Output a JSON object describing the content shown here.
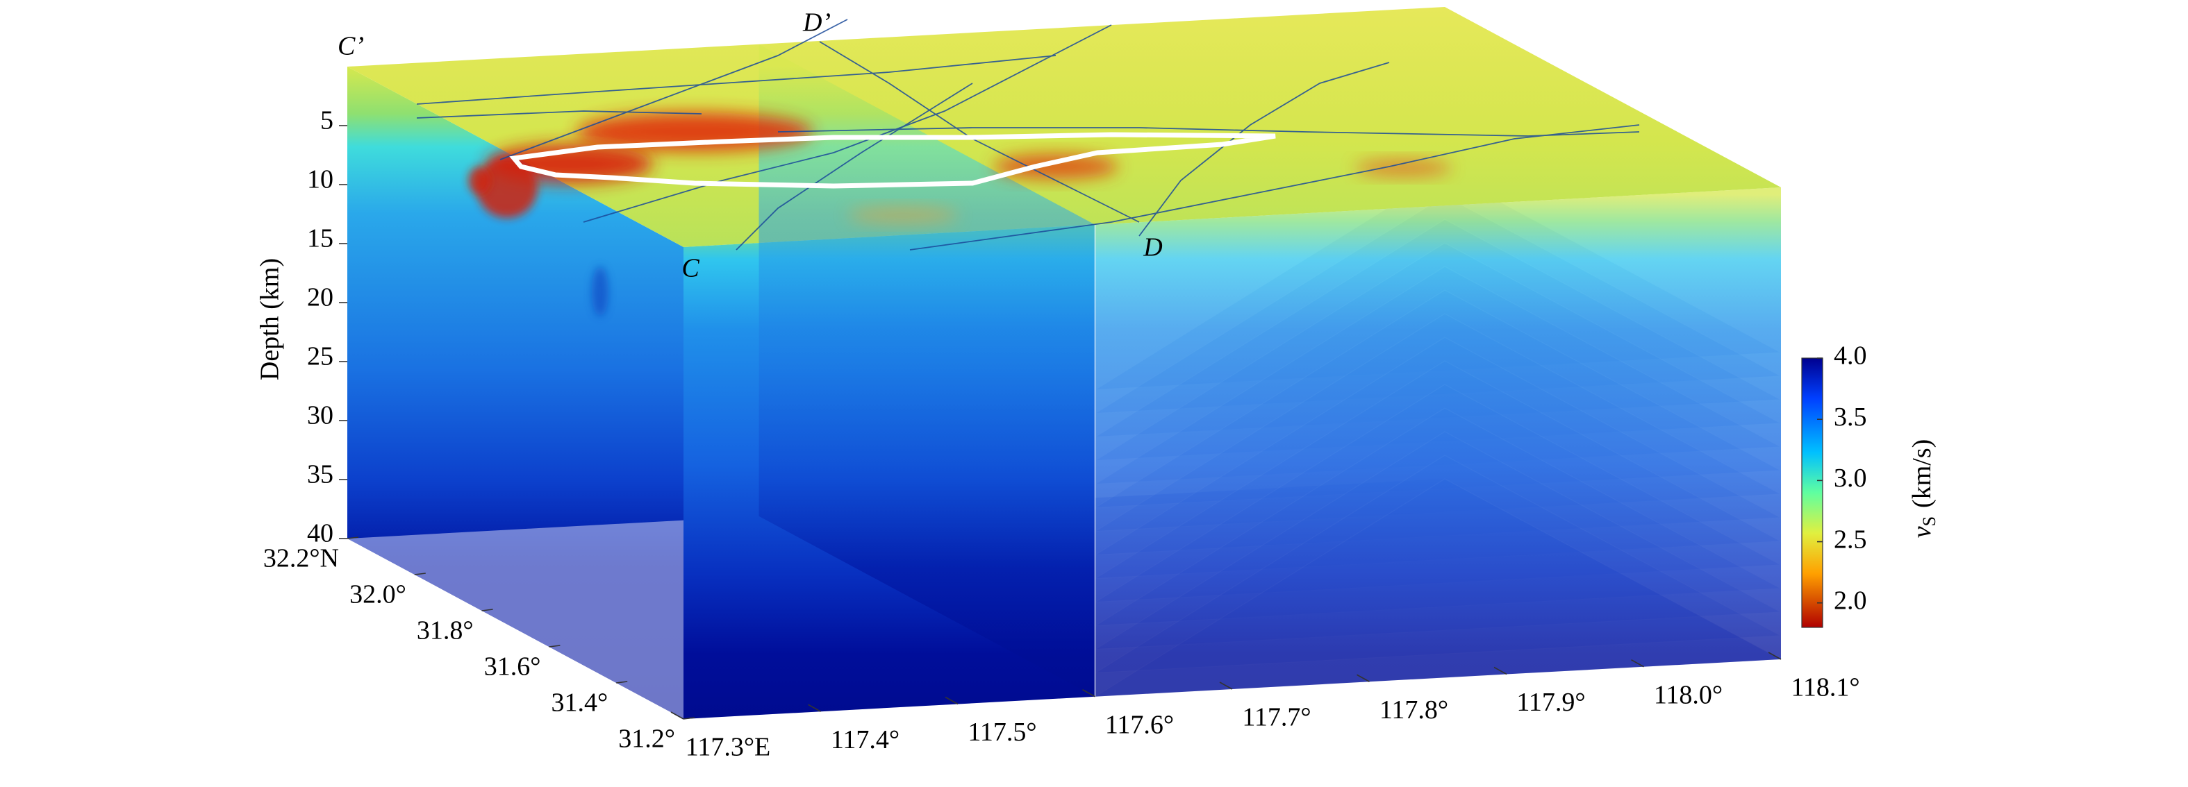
{
  "chart_data": {
    "type": "volume",
    "depth_label": "Depth (km)",
    "zlim": [
      0,
      40
    ],
    "zticks": [
      5,
      10,
      15,
      20,
      25,
      30,
      35,
      40
    ],
    "xlim": [
      117.3,
      118.1
    ],
    "xticks": [
      {
        "value": 117.3,
        "label": "117.3°E"
      },
      {
        "value": 117.4,
        "label": "117.4°"
      },
      {
        "value": 117.5,
        "label": "117.5°"
      },
      {
        "value": 117.6,
        "label": "117.6°"
      },
      {
        "value": 117.7,
        "label": "117.7°"
      },
      {
        "value": 117.8,
        "label": "117.8°"
      },
      {
        "value": 117.9,
        "label": "117.9°"
      },
      {
        "value": 118.0,
        "label": "118.0°"
      },
      {
        "value": 118.1,
        "label": "118.1°"
      }
    ],
    "ylim": [
      31.2,
      32.2
    ],
    "yticks": [
      {
        "value": 32.2,
        "label": "32.2°N"
      },
      {
        "value": 32.0,
        "label": "32.0°"
      },
      {
        "value": 31.8,
        "label": "31.8°"
      },
      {
        "value": 31.6,
        "label": "31.6°"
      },
      {
        "value": 31.4,
        "label": "31.4°"
      },
      {
        "value": 31.2,
        "label": "31.2°"
      }
    ],
    "clim": [
      1.8,
      4.0
    ],
    "cticks": [
      {
        "value": 4.0,
        "label": "4.0"
      },
      {
        "value": 3.5,
        "label": "3.5"
      },
      {
        "value": 3.0,
        "label": "3.0"
      },
      {
        "value": 2.5,
        "label": "2.5"
      },
      {
        "value": 2.0,
        "label": "2.0"
      }
    ],
    "colorbar_label": {
      "symbol": "v",
      "subscript": "S",
      "unit": "(km/s)"
    },
    "annotations": [
      "C’",
      "D’",
      "C",
      "D"
    ]
  }
}
